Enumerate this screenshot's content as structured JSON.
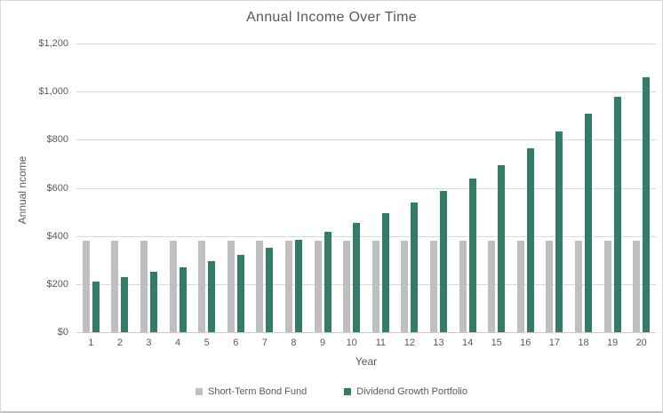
{
  "window": {
    "background": "#ffffff",
    "border_color": "#d7d7d7"
  },
  "colors": {
    "title_text": "#595959",
    "axis_text": "#595959",
    "gridline": "#d9d9d9",
    "axis_line": "#c9c9c9",
    "bond_fund_bar": "#bfbfbf",
    "dividend_bar": "#317d69"
  },
  "chart_data": {
    "type": "bar",
    "title": "Annual Income Over Time",
    "xlabel": "Year",
    "ylabel": "Annual ncome",
    "categories": [
      "1",
      "2",
      "3",
      "4",
      "5",
      "6",
      "7",
      "8",
      "9",
      "10",
      "11",
      "12",
      "13",
      "14",
      "15",
      "16",
      "17",
      "18",
      "19",
      "20"
    ],
    "series": [
      {
        "name": "Short-Term Bond Fund",
        "color": "#bfbfbf",
        "values": [
          380,
          380,
          380,
          380,
          380,
          380,
          380,
          380,
          380,
          380,
          380,
          380,
          380,
          380,
          380,
          380,
          380,
          380,
          380,
          380
        ]
      },
      {
        "name": "Dividend Growth Portfolio",
        "color": "#317d69",
        "values": [
          210,
          229,
          250,
          271,
          296,
          322,
          352,
          384,
          417,
          453,
          495,
          540,
          586,
          640,
          693,
          763,
          834,
          908,
          977,
          1060
        ]
      }
    ],
    "ylim": [
      0,
      1200
    ],
    "ytick_step": 200,
    "ytick_labels": [
      "$0",
      "$200",
      "$400",
      "$600",
      "$800",
      "$1,000",
      "$1,200"
    ],
    "grid": true,
    "legend_position": "bottom"
  }
}
